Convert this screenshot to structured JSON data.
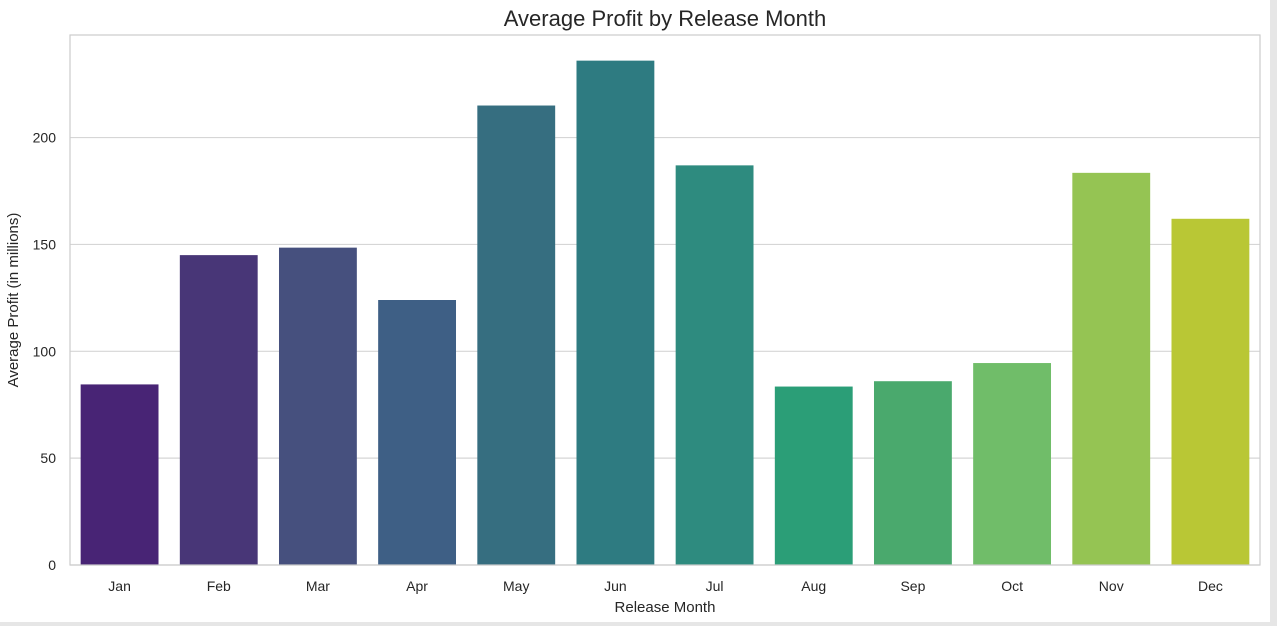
{
  "chart_data": {
    "type": "bar",
    "title": "Average Profit by Release Month",
    "xlabel": "Release Month",
    "ylabel": "Average Profit (in millions)",
    "categories": [
      "Jan",
      "Feb",
      "Mar",
      "Apr",
      "May",
      "Jun",
      "Jul",
      "Aug",
      "Sep",
      "Oct",
      "Nov",
      "Dec"
    ],
    "values": [
      84.5,
      145,
      148.5,
      124,
      215,
      236,
      187,
      83.5,
      86,
      94.5,
      183.5,
      162
    ],
    "colors": [
      "#482475",
      "#483677",
      "#46507e",
      "#3e5f85",
      "#366e80",
      "#2e7b81",
      "#2e8b7f",
      "#2b9e77",
      "#4aa96d",
      "#70bd69",
      "#95c453",
      "#b9c735"
    ],
    "yticks": [
      0,
      50,
      100,
      150,
      200
    ],
    "ylim": [
      0,
      248
    ],
    "grid": "y",
    "legend": "none"
  }
}
